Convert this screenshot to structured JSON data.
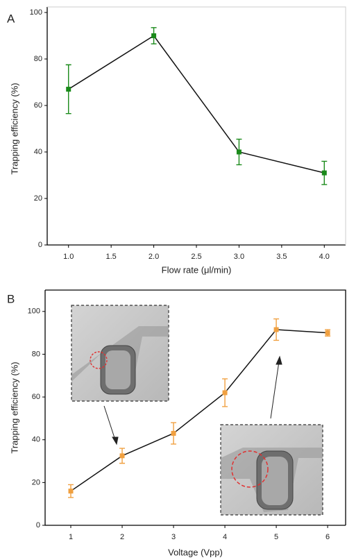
{
  "chart_data": [
    {
      "type": "line",
      "panel_label": "A",
      "x_label": "Flow rate (μl/min)",
      "y_label": "Trapping efficiency (%)",
      "x": [
        1.0,
        2.0,
        3.0,
        4.0
      ],
      "values": [
        67,
        90,
        40,
        31
      ],
      "errors": [
        10.5,
        3.5,
        5.5,
        5
      ],
      "color": "#1a8a1a",
      "xlim": [
        0.75,
        4.25
      ],
      "ylim": [
        0,
        100
      ],
      "xticks": [
        {
          "value": 1.0,
          "label": "1.0"
        },
        {
          "value": 1.5,
          "label": "1.5"
        },
        {
          "value": 2.0,
          "label": "2.0"
        },
        {
          "value": 2.5,
          "label": "2.5"
        },
        {
          "value": 3.0,
          "label": "3.0"
        },
        {
          "value": 3.5,
          "label": "3.5"
        },
        {
          "value": 4.0,
          "label": "4.0"
        }
      ],
      "yticks": [
        0,
        20,
        40,
        60,
        80,
        100
      ]
    },
    {
      "type": "line",
      "panel_label": "B",
      "x_label": "Voltage (Vpp)",
      "y_label": "Trapping efficiency (%)",
      "x": [
        1,
        2,
        3,
        4,
        5,
        6
      ],
      "values": [
        16,
        32.5,
        43,
        62,
        91.5,
        90
      ],
      "errors": [
        3,
        3.5,
        5,
        6.5,
        5,
        1.5
      ],
      "color": "#f0a040",
      "xlim": [
        0.5,
        6.35
      ],
      "ylim": [
        0,
        110
      ],
      "xticks": [
        1,
        2,
        3,
        4,
        5,
        6
      ],
      "yticks": [
        0,
        20,
        40,
        60,
        80,
        100
      ]
    }
  ]
}
